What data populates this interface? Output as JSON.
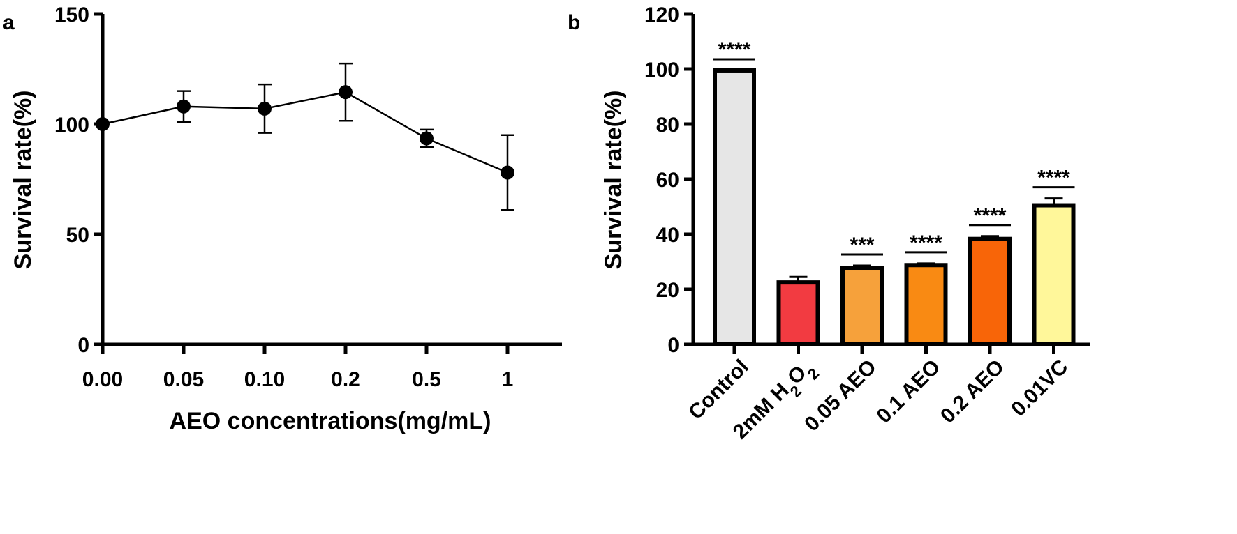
{
  "chart_data": [
    {
      "panel": "a",
      "type": "line",
      "xlabel": "AEO concentrations(mg/mL)",
      "ylabel": "Survival rate(%)",
      "categories": [
        "0.00",
        "0.05",
        "0.10",
        "0.2",
        "0.5",
        "1"
      ],
      "ylim": [
        0,
        150
      ],
      "yticks": [
        "0",
        "50",
        "100",
        "150"
      ],
      "series": [
        {
          "values": [
            100,
            108,
            107,
            114.5,
            93.5,
            78
          ],
          "error": [
            0,
            7,
            11,
            13,
            4,
            17
          ],
          "color": "#000000"
        }
      ]
    },
    {
      "panel": "b",
      "type": "bar",
      "ylabel": "Survival rate(%)",
      "categories": [
        "Control",
        "2mM H2O2",
        "0.05 AEO",
        "0.1 AEO",
        "0.2 AEO",
        "0.01VC"
      ],
      "values": [
        99.5,
        22.5,
        27.8,
        28.8,
        38.3,
        50.5
      ],
      "error": [
        0,
        2,
        0.8,
        0.6,
        1,
        2.5
      ],
      "significance": [
        "****",
        "",
        "***",
        "****",
        "****",
        "****"
      ],
      "colors": [
        "#e6e6e6",
        "#f23b41",
        "#f6a13b",
        "#f98a13",
        "#f86508",
        "#fff79a"
      ],
      "ylim": [
        0,
        120
      ],
      "yticks": [
        "0",
        "20",
        "40",
        "60",
        "80",
        "100",
        "120"
      ]
    }
  ]
}
